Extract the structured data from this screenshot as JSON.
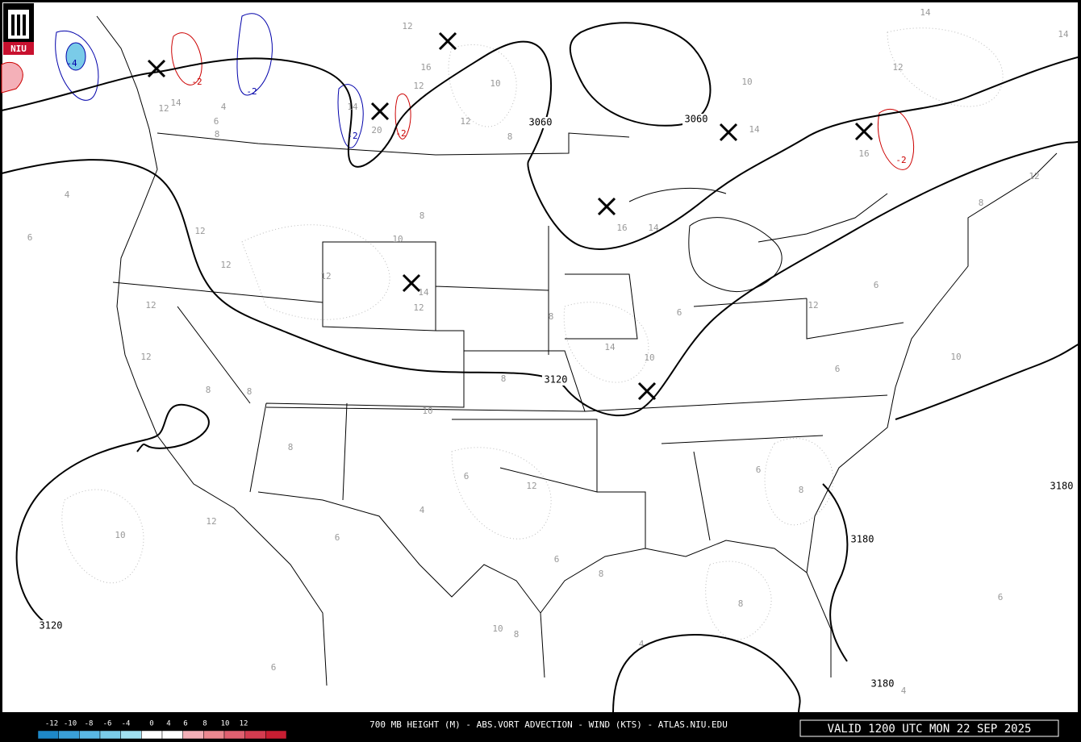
{
  "logo": "NIU",
  "title": "700 MB HEIGHT (M) - ABS.VORT ADVECTION - WIND (KTS) - ATLAS.NIU.EDU",
  "valid": "VALID 1200 UTC MON 22 SEP 2025",
  "colorbar": {
    "ticks": [
      -12,
      -10,
      -8,
      -6,
      -4,
      0,
      4,
      6,
      8,
      10,
      12
    ],
    "colors": [
      "#1e88c8",
      "#3aa0d8",
      "#5ab8e4",
      "#7acbe8",
      "#a0e0f0",
      "#ffffff",
      "#ffffff",
      "#f4b0b8",
      "#ec8890",
      "#e06070",
      "#d43c50",
      "#c81e32"
    ]
  },
  "height_labels": [
    "3060",
    "3060",
    "3120",
    "3120",
    "3180",
    "3180",
    "3180"
  ],
  "advection_labels": [
    "-4",
    "-2",
    "-2",
    "-2",
    "-2",
    "-2"
  ],
  "vort_labels": [
    "12",
    "16",
    "10",
    "12",
    "14",
    "14",
    "12",
    "10",
    "14",
    "16",
    "12",
    "14",
    "4",
    "6",
    "8",
    "14",
    "20",
    "12",
    "8",
    "12",
    "12",
    "12",
    "10",
    "14",
    "12",
    "8",
    "16",
    "14",
    "12",
    "12",
    "8",
    "8",
    "10",
    "8",
    "14",
    "10",
    "6",
    "8",
    "12",
    "6",
    "10",
    "6",
    "8",
    "6",
    "12",
    "4",
    "12",
    "10",
    "6",
    "6",
    "8",
    "8",
    "8",
    "10",
    "4",
    "6",
    "6",
    "8",
    "6",
    "4",
    "8",
    "12",
    "4",
    "6"
  ]
}
